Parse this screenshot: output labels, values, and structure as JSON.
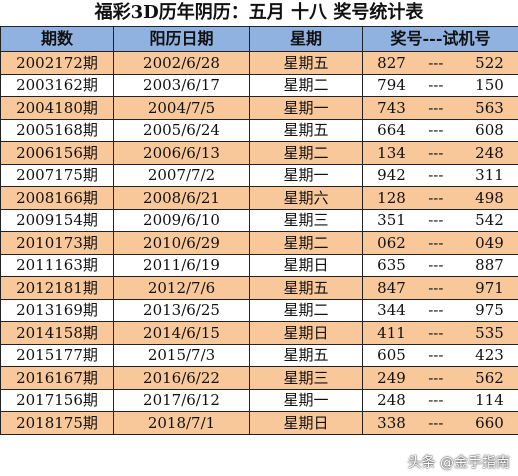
{
  "title": "福彩3D历年阴历：五月  十八  奖号统计表",
  "headers": {
    "period": "期数",
    "date": "阳历日期",
    "weekday": "星期",
    "draw": "奖号---试机号"
  },
  "separator": "---",
  "rows": [
    {
      "period": "2002172期",
      "date": "2002/6/28",
      "weekday": "星期五",
      "win": "827",
      "trial": "522"
    },
    {
      "period": "2003162期",
      "date": "2003/6/17",
      "weekday": "星期二",
      "win": "794",
      "trial": "150"
    },
    {
      "period": "2004180期",
      "date": "2004/7/5",
      "weekday": "星期一",
      "win": "743",
      "trial": "563"
    },
    {
      "period": "2005168期",
      "date": "2005/6/24",
      "weekday": "星期五",
      "win": "664",
      "trial": "608"
    },
    {
      "period": "2006156期",
      "date": "2006/6/13",
      "weekday": "星期二",
      "win": "134",
      "trial": "248"
    },
    {
      "period": "2007175期",
      "date": "2007/7/2",
      "weekday": "星期一",
      "win": "942",
      "trial": "311"
    },
    {
      "period": "2008166期",
      "date": "2008/6/21",
      "weekday": "星期六",
      "win": "128",
      "trial": "498"
    },
    {
      "period": "2009154期",
      "date": "2009/6/10",
      "weekday": "星期三",
      "win": "351",
      "trial": "542"
    },
    {
      "period": "2010173期",
      "date": "2010/6/29",
      "weekday": "星期二",
      "win": "062",
      "trial": "049"
    },
    {
      "period": "2011163期",
      "date": "2011/6/19",
      "weekday": "星期日",
      "win": "635",
      "trial": "887"
    },
    {
      "period": "2012181期",
      "date": "2012/7/6",
      "weekday": "星期五",
      "win": "847",
      "trial": "971"
    },
    {
      "period": "2013169期",
      "date": "2013/6/25",
      "weekday": "星期二",
      "win": "344",
      "trial": "975"
    },
    {
      "period": "2014158期",
      "date": "2014/6/15",
      "weekday": "星期日",
      "win": "411",
      "trial": "535"
    },
    {
      "period": "2015177期",
      "date": "2015/7/3",
      "weekday": "星期五",
      "win": "605",
      "trial": "423"
    },
    {
      "period": "2016167期",
      "date": "2016/6/22",
      "weekday": "星期三",
      "win": "249",
      "trial": "562"
    },
    {
      "period": "2017156期",
      "date": "2017/6/12",
      "weekday": "星期一",
      "win": "248",
      "trial": "114"
    },
    {
      "period": "2018175期",
      "date": "2018/7/1",
      "weekday": "星期日",
      "win": "338",
      "trial": "660"
    }
  ],
  "watermark": "头条 @金手指南",
  "colors": {
    "header_bg": "#8fb2e0",
    "alt_row_bg": "#f8c89a",
    "row_bg": "#ffffff"
  }
}
